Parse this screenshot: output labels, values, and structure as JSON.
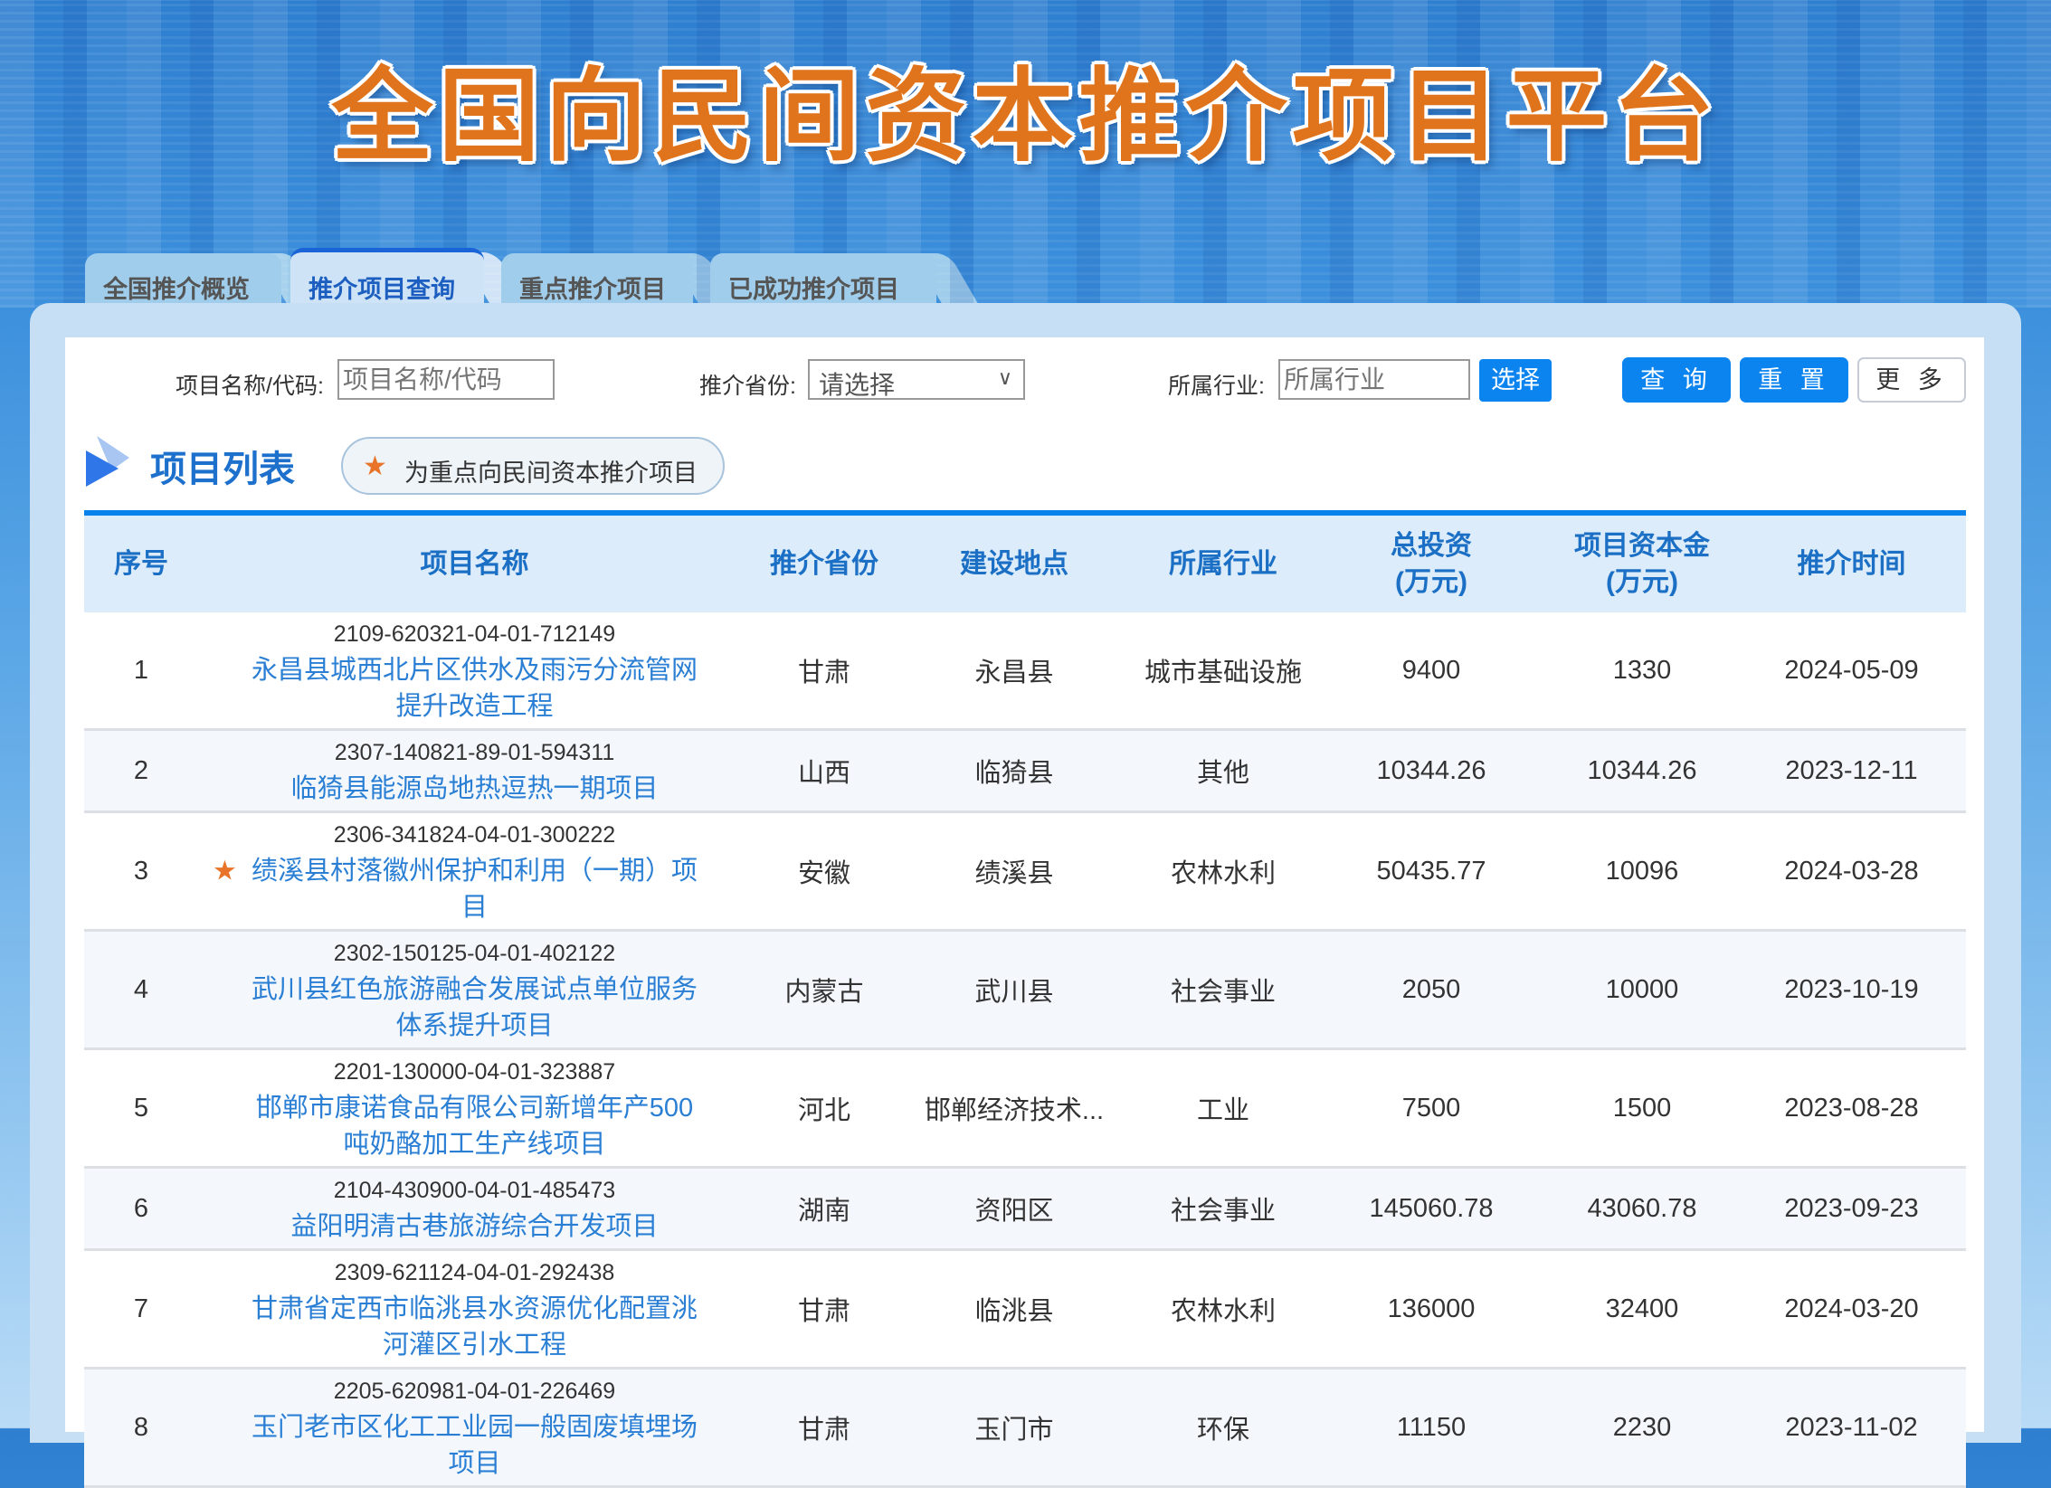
{
  "header": {
    "title": "全国向民间资本推介项目平台"
  },
  "tabs": [
    {
      "label": "全国推介概览"
    },
    {
      "label": "推介项目查询",
      "active": true
    },
    {
      "label": "重点推介项目"
    },
    {
      "label": "已成功推介项目"
    }
  ],
  "filters": {
    "name_label": "项目名称/代码:",
    "name_placeholder": "项目名称/代码",
    "province_label": "推介省份:",
    "province_value": "请选择",
    "industry_label": "所属行业:",
    "industry_placeholder": "所属行业",
    "select_button": "选择",
    "query_button": "查 询",
    "reset_button": "重 置",
    "more_button": "更 多"
  },
  "section": {
    "title": "项目列表",
    "legend": "为重点向民间资本推介项目",
    "legend_icon": "star-icon"
  },
  "colors": {
    "accent": "#0b84f0",
    "link": "#2a7fd4",
    "star": "#e8742a",
    "header_text": "#1b6fc4"
  },
  "table": {
    "columns": [
      "序号",
      "项目名称",
      "推介省份",
      "建设地点",
      "所属行业",
      "总投资\n(万元)",
      "项目资本金\n(万元)",
      "推介时间"
    ],
    "rows": [
      {
        "no": "1",
        "code": "2109-620321-04-01-712149",
        "name": "永昌县城西北片区供水及雨污分流管网提升改造工程",
        "province": "甘肃",
        "location": "永昌县",
        "industry": "城市基础设施",
        "total": "9400",
        "capital": "1330",
        "date": "2024-05-09",
        "key": false
      },
      {
        "no": "2",
        "code": "2307-140821-89-01-594311",
        "name": "临猗县能源岛地热逗热一期项目",
        "province": "山西",
        "location": "临猗县",
        "industry": "其他",
        "total": "10344.26",
        "capital": "10344.26",
        "date": "2023-12-11",
        "key": false
      },
      {
        "no": "3",
        "code": "2306-341824-04-01-300222",
        "name": "绩溪县村落徽州保护和利用（一期）项目",
        "province": "安徽",
        "location": "绩溪县",
        "industry": "农林水利",
        "total": "50435.77",
        "capital": "10096",
        "date": "2024-03-28",
        "key": true
      },
      {
        "no": "4",
        "code": "2302-150125-04-01-402122",
        "name": "武川县红色旅游融合发展试点单位服务体系提升项目",
        "province": "内蒙古",
        "location": "武川县",
        "industry": "社会事业",
        "total": "2050",
        "capital": "10000",
        "date": "2023-10-19",
        "key": false
      },
      {
        "no": "5",
        "code": "2201-130000-04-01-323887",
        "name": "邯郸市康诺食品有限公司新增年产500吨奶酪加工生产线项目",
        "province": "河北",
        "location": "邯郸经济技术...",
        "industry": "工业",
        "total": "7500",
        "capital": "1500",
        "date": "2023-08-28",
        "key": false
      },
      {
        "no": "6",
        "code": "2104-430900-04-01-485473",
        "name": "益阳明清古巷旅游综合开发项目",
        "province": "湖南",
        "location": "资阳区",
        "industry": "社会事业",
        "total": "145060.78",
        "capital": "43060.78",
        "date": "2023-09-23",
        "key": false
      },
      {
        "no": "7",
        "code": "2309-621124-04-01-292438",
        "name": "甘肃省定西市临洮县水资源优化配置洮河灌区引水工程",
        "province": "甘肃",
        "location": "临洮县",
        "industry": "农林水利",
        "total": "136000",
        "capital": "32400",
        "date": "2024-03-20",
        "key": false
      },
      {
        "no": "8",
        "code": "2205-620981-04-01-226469",
        "name": "玉门老市区化工工业园一般固废填埋场项目",
        "province": "甘肃",
        "location": "玉门市",
        "industry": "环保",
        "total": "11150",
        "capital": "2230",
        "date": "2023-11-02",
        "key": false
      }
    ]
  }
}
